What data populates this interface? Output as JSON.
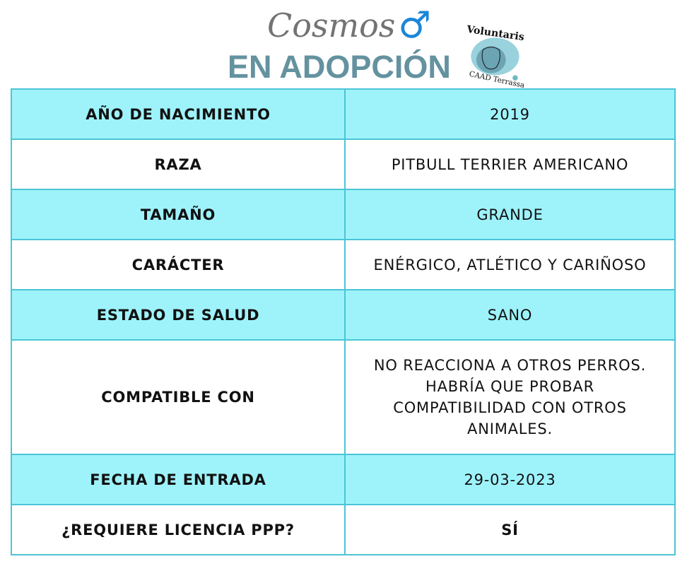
{
  "header": {
    "name": "Cosmos",
    "sex_icon": "male-symbol-icon",
    "subtitle": "EN ADOPCIÓN",
    "logo": {
      "top_text": "Voluntaris",
      "bottom_text": "CAAD Terrassa"
    }
  },
  "colors": {
    "row_highlight": "#9ef3fb",
    "border": "#4cc4d6",
    "subtitle": "#64929f",
    "male_symbol": "#1a86d8"
  },
  "rows": [
    {
      "label": "AÑO DE NACIMIENTO",
      "value": "2019"
    },
    {
      "label": "RAZA",
      "value": "PITBULL TERRIER AMERICANO"
    },
    {
      "label": "TAMAÑO",
      "value": "GRANDE"
    },
    {
      "label": "CARÁCTER",
      "value": "ENÉRGICO, ATLÉTICO Y CARIÑOSO"
    },
    {
      "label": "ESTADO DE SALUD",
      "value": "SANO"
    },
    {
      "label": "COMPATIBLE CON",
      "value_lines": [
        "NO REACCIONA A OTROS PERROS.",
        "HABRÍA QUE PROBAR",
        "COMPATIBILIDAD CON OTROS",
        "ANIMALES."
      ]
    },
    {
      "label": "FECHA DE ENTRADA",
      "value": "29-03-2023"
    },
    {
      "label": "¿REQUIERE LICENCIA PPP?",
      "value": "SÍ"
    }
  ]
}
